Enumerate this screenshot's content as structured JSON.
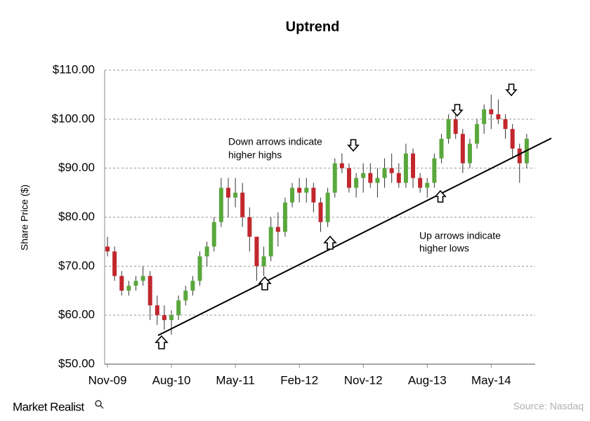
{
  "chart_data": {
    "type": "candlestick",
    "title": "Uptrend",
    "y_label": "Share Price  ($)",
    "categories": [
      "Nov-09",
      null,
      null,
      null,
      null,
      null,
      null,
      null,
      null,
      "Aug-10",
      null,
      null,
      null,
      null,
      null,
      null,
      null,
      null,
      "May-11",
      null,
      null,
      null,
      null,
      null,
      null,
      null,
      null,
      "Feb-12",
      null,
      null,
      null,
      null,
      null,
      null,
      null,
      null,
      "Nov-12",
      null,
      null,
      null,
      null,
      null,
      null,
      null,
      null,
      "Aug-13",
      null,
      null,
      null,
      null,
      null,
      null,
      null,
      null,
      "May-14",
      null,
      null,
      null,
      null,
      null
    ],
    "open": [
      74,
      73,
      68,
      65,
      66,
      67,
      68,
      62,
      60,
      59,
      60,
      63,
      65,
      67,
      72,
      74,
      79,
      86,
      84,
      85,
      80,
      76,
      70,
      72,
      78,
      77,
      83,
      86,
      85,
      86,
      83,
      79,
      85,
      91,
      90,
      86,
      88,
      89,
      87,
      88,
      90,
      89,
      87,
      93,
      88,
      86,
      87,
      92,
      96,
      100,
      97,
      91,
      95,
      99,
      102,
      101,
      100,
      98,
      94,
      91
    ],
    "high": [
      76,
      74,
      69,
      67,
      68,
      70,
      69,
      64,
      62,
      61,
      64,
      66,
      68,
      73,
      75,
      80,
      88,
      88,
      88,
      87,
      82,
      76,
      74,
      80,
      81,
      84,
      87,
      88,
      88,
      87,
      84,
      86,
      92,
      93,
      91,
      89,
      91,
      91,
      90,
      92,
      93,
      91,
      95,
      94,
      89,
      88,
      93,
      97,
      101,
      102,
      98,
      96,
      100,
      103,
      105,
      104,
      101,
      99,
      95,
      97
    ],
    "low": [
      72,
      67,
      64,
      64,
      65,
      66,
      59,
      58,
      57,
      56,
      59,
      62,
      64,
      66,
      70,
      73,
      78,
      80,
      82,
      78,
      73,
      67,
      68,
      71,
      74,
      76,
      82,
      83,
      83,
      81,
      77,
      78,
      84,
      89,
      85,
      84,
      85,
      86,
      84,
      86,
      87,
      86,
      86,
      86,
      85,
      84,
      86,
      91,
      95,
      96,
      89,
      90,
      94,
      97,
      98,
      99,
      96,
      92,
      87,
      90
    ],
    "close": [
      73,
      68,
      65,
      66,
      67,
      68,
      62,
      60,
      59,
      60,
      63,
      65,
      67,
      72,
      74,
      79,
      86,
      84,
      85,
      80,
      76,
      70,
      72,
      78,
      77,
      83,
      86,
      85,
      86,
      83,
      79,
      85,
      91,
      90,
      86,
      88,
      89,
      87,
      88,
      90,
      89,
      87,
      93,
      88,
      86,
      87,
      92,
      96,
      100,
      97,
      91,
      95,
      99,
      102,
      101,
      100,
      98,
      94,
      91,
      96
    ],
    "up_color": "#5aa83c",
    "down_color": "#c1272d",
    "ylim": [
      50,
      110
    ],
    "yticks": [
      {
        "value": 50,
        "label": "$50.00"
      },
      {
        "value": 60,
        "label": "$60.00"
      },
      {
        "value": 70,
        "label": "$70.00"
      },
      {
        "value": 80,
        "label": "$80.00"
      },
      {
        "value": 90,
        "label": "$90.00"
      },
      {
        "value": 100,
        "label": "$100.00"
      },
      {
        "value": 110,
        "label": "$110.00"
      }
    ],
    "grid": true,
    "annotations": [
      {
        "lines": [
          "Down arrows indicate",
          "higher highs"
        ]
      },
      {
        "lines": [
          "Up arrows indicate",
          "higher lows"
        ]
      }
    ]
  },
  "footer": {
    "brand": "Market Realist",
    "source": "Source: Nasdaq"
  }
}
